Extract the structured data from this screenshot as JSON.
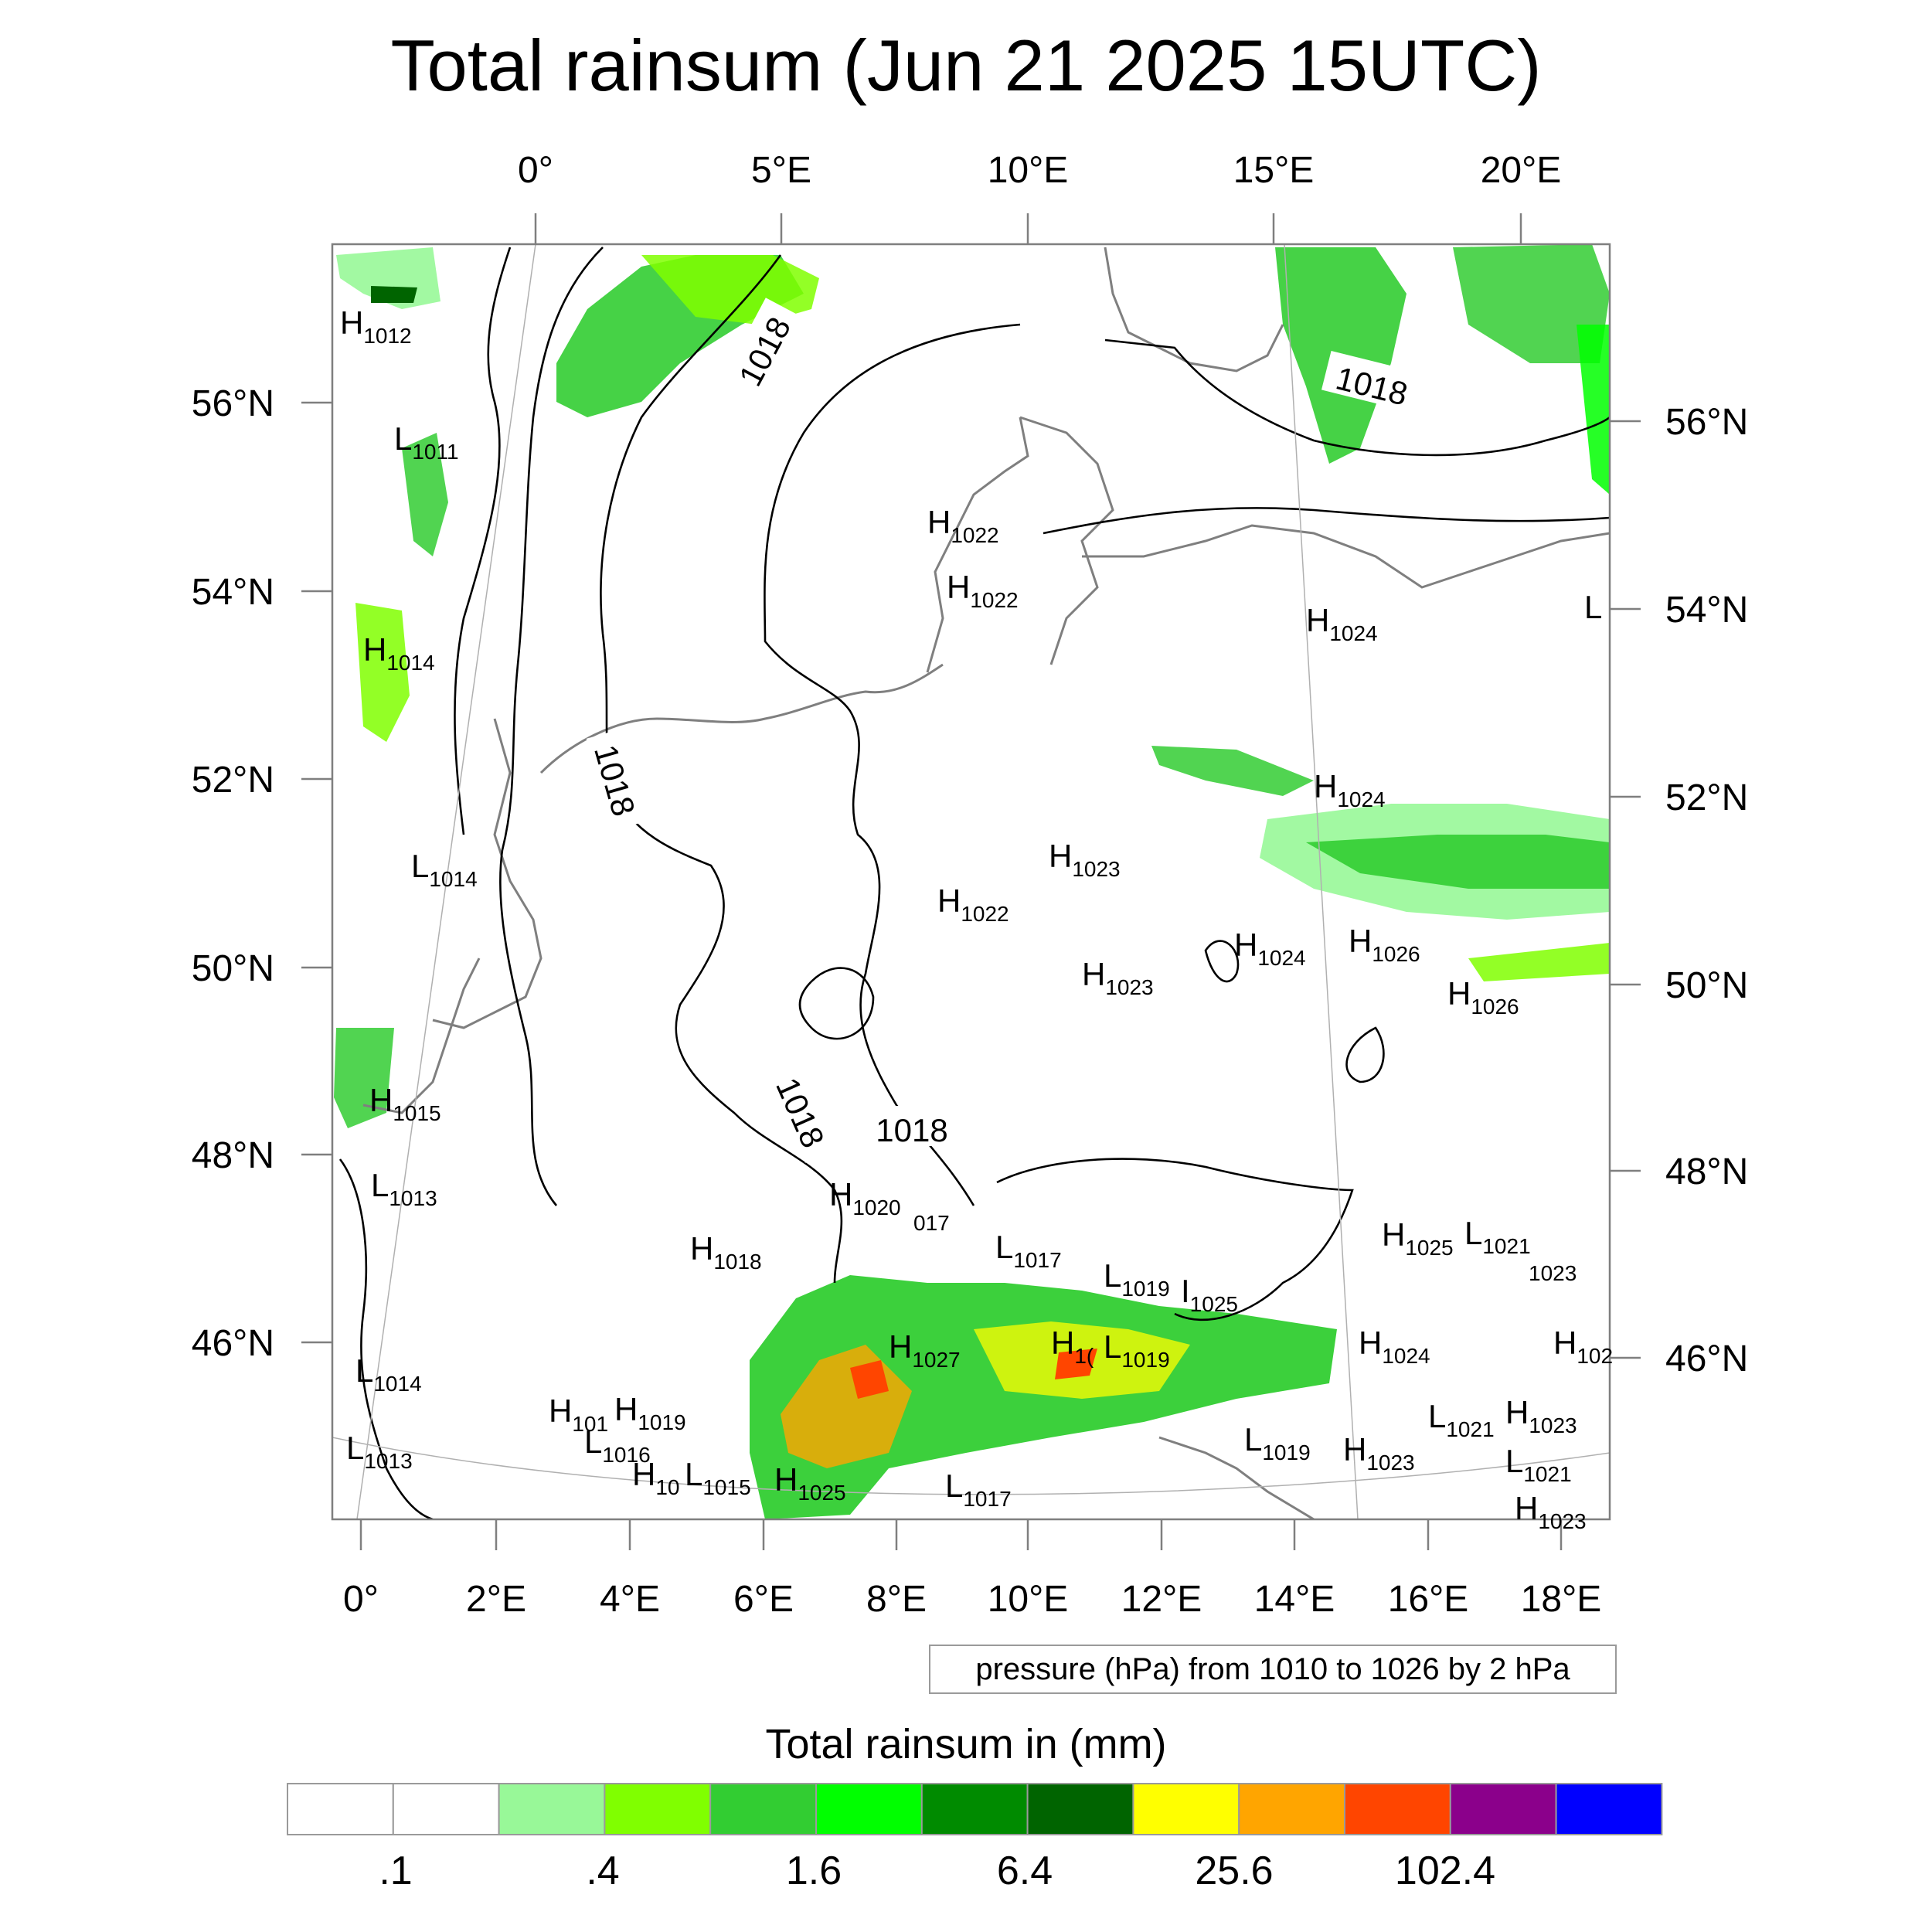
{
  "title": "Total rainsum (Jun 21 2025 15UTC)",
  "top_axis": {
    "labels": [
      "0°",
      "5°E",
      "10°E",
      "15°E",
      "20°E"
    ]
  },
  "left_axis": {
    "labels": [
      "56°N",
      "54°N",
      "52°N",
      "50°N",
      "48°N",
      "46°N"
    ]
  },
  "right_axis": {
    "labels": [
      "56°N",
      "54°N",
      "52°N",
      "50°N",
      "48°N",
      "46°N"
    ]
  },
  "bottom_axis": {
    "labels": [
      "0°",
      "2°E",
      "4°E",
      "6°E",
      "8°E",
      "10°E",
      "12°E",
      "14°E",
      "16°E",
      "18°E"
    ]
  },
  "pressure_note": "pressure (hPa) from 1010 to 1026 by 2 hPa",
  "contour_labels": [
    "1018",
    "1018",
    "1018",
    "1018",
    "1018"
  ],
  "pressure_centers": [
    {
      "t": "H",
      "v": "1012"
    },
    {
      "t": "L",
      "v": "1011"
    },
    {
      "t": "H",
      "v": "1014"
    },
    {
      "t": "L",
      "v": "1014"
    },
    {
      "t": "H",
      "v": "1015"
    },
    {
      "t": "L",
      "v": "1013"
    },
    {
      "t": "L",
      "v": "1014"
    },
    {
      "t": "L",
      "v": "1013"
    },
    {
      "t": "H",
      "v": "1022"
    },
    {
      "t": "H",
      "v": "1022"
    },
    {
      "t": "H",
      "v": "1024"
    },
    {
      "t": "L",
      "v": ""
    },
    {
      "t": "H",
      "v": "1024"
    },
    {
      "t": "H",
      "v": "1023"
    },
    {
      "t": "H",
      "v": "1022"
    },
    {
      "t": "H",
      "v": "1023"
    },
    {
      "t": "H",
      "v": "1024"
    },
    {
      "t": "H",
      "v": "1026"
    },
    {
      "t": "H",
      "v": "1026"
    },
    {
      "t": "H",
      "v": "1020"
    },
    {
      "t": "",
      "v": "017"
    },
    {
      "t": "H",
      "v": "1018"
    },
    {
      "t": "L",
      "v": "1017"
    },
    {
      "t": "L",
      "v": "1019"
    },
    {
      "t": "I",
      "v": "1025"
    },
    {
      "t": "H",
      "v": "1025"
    },
    {
      "t": "L",
      "v": "1021"
    },
    {
      "t": "",
      "v": "1023"
    },
    {
      "t": "H",
      "v": "1027"
    },
    {
      "t": "H",
      "v": "1("
    },
    {
      "t": "L",
      "v": "1019"
    },
    {
      "t": "H",
      "v": "1024"
    },
    {
      "t": "H",
      "v": "102"
    },
    {
      "t": "H",
      "v": "101"
    },
    {
      "t": "H",
      "v": "1019"
    },
    {
      "t": "L",
      "v": "1016"
    },
    {
      "t": "L",
      "v": "1021"
    },
    {
      "t": "H",
      "v": "1023"
    },
    {
      "t": "L",
      "v": "1019"
    },
    {
      "t": "H",
      "v": "1023"
    },
    {
      "t": "L",
      "v": "1021"
    },
    {
      "t": "H",
      "v": "10"
    },
    {
      "t": "L",
      "v": "1015"
    },
    {
      "t": "H",
      "v": "1025"
    },
    {
      "t": "L",
      "v": "1017"
    },
    {
      "t": "H",
      "v": "1023"
    }
  ],
  "colorbar": {
    "title": "Total rainsum in (mm)",
    "colors": [
      "#ffffff",
      "#ffffff",
      "#98f898",
      "#80ff00",
      "#32cd32",
      "#00ff00",
      "#008b00",
      "#006400",
      "#ffff00",
      "#ffa500",
      "#ff4500",
      "#8b008b",
      "#0000ff"
    ],
    "labels": [
      ".1",
      ".4",
      "1.6",
      "6.4",
      "25.6",
      "102.4"
    ]
  }
}
